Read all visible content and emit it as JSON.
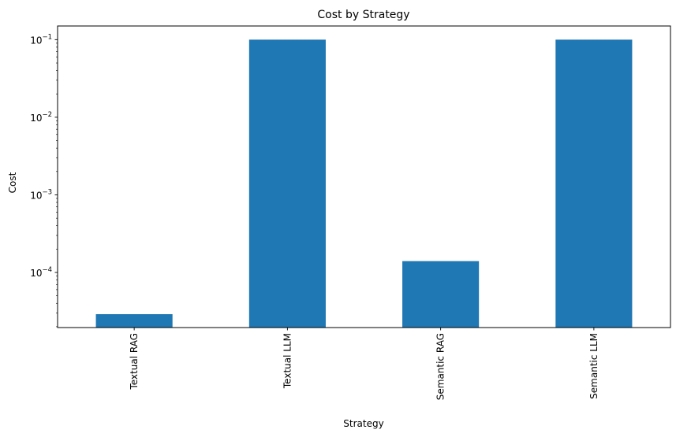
{
  "chart_data": {
    "type": "bar",
    "title": "Cost by Strategy",
    "xlabel": "Strategy",
    "ylabel": "Cost",
    "categories": [
      "Textual RAG",
      "Textual LLM",
      "Semantic RAG",
      "Semantic LLM"
    ],
    "values": [
      2.9e-05,
      0.1,
      0.00014,
      0.1
    ],
    "yscale": "log",
    "ylim": [
      1.95e-05,
      0.15
    ],
    "yticks": [
      {
        "value": 0.0001,
        "base": "10",
        "exp": "−4"
      },
      {
        "value": 0.001,
        "base": "10",
        "exp": "−3"
      },
      {
        "value": 0.01,
        "base": "10",
        "exp": "−2"
      },
      {
        "value": 0.1,
        "base": "10",
        "exp": "−1"
      }
    ],
    "grid": false,
    "legend": "none",
    "bar_color": "#1f77b4"
  }
}
